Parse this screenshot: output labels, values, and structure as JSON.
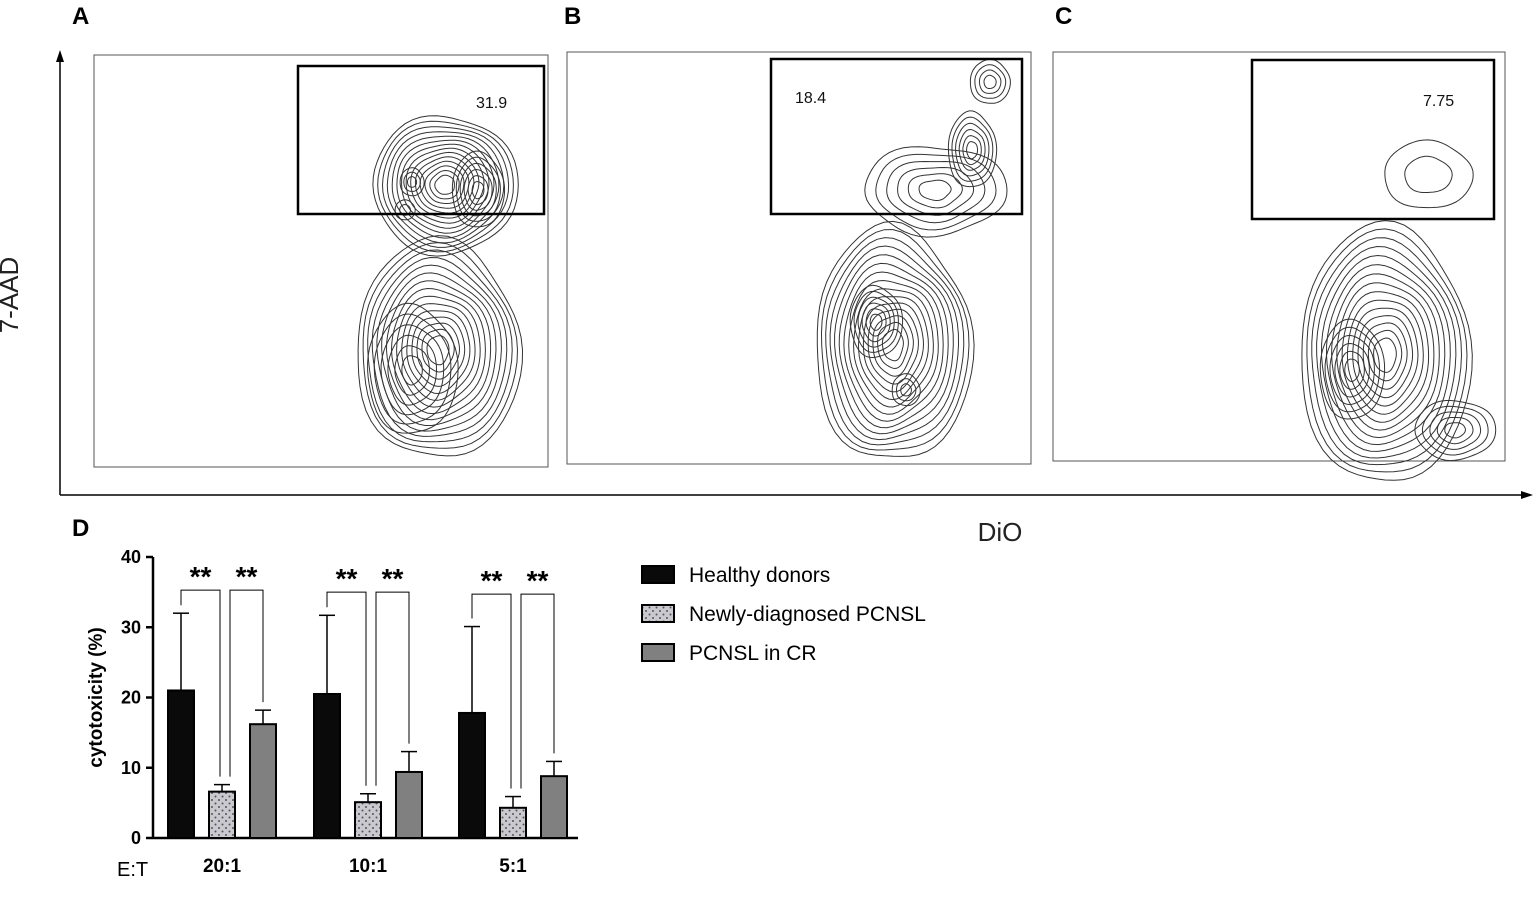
{
  "panels": {
    "A": {
      "letter": "A",
      "gate_value": "31.9"
    },
    "B": {
      "letter": "B",
      "gate_value": "18.4"
    },
    "C": {
      "letter": "C",
      "gate_value": "7.75"
    },
    "D": {
      "letter": "D"
    }
  },
  "flow_axes": {
    "ylabel": "7-AAD",
    "xlabel": "DiO"
  },
  "chart_data": [
    {
      "type": "contour",
      "panel": "A",
      "xlabel": "DiO",
      "ylabel": "7-AAD",
      "gate_percent": 31.9
    },
    {
      "type": "contour",
      "panel": "B",
      "xlabel": "DiO",
      "ylabel": "7-AAD",
      "gate_percent": 18.4
    },
    {
      "type": "contour",
      "panel": "C",
      "xlabel": "DiO",
      "ylabel": "7-AAD",
      "gate_percent": 7.75
    },
    {
      "type": "bar",
      "panel": "D",
      "ylabel": "cytotoxicity (%)",
      "xlabel": "E:T",
      "ylim": [
        0,
        40
      ],
      "yticks": [
        0,
        10,
        20,
        30,
        40
      ],
      "categories": [
        "20:1",
        "10:1",
        "5:1"
      ],
      "series": [
        {
          "name": "Healthy donors",
          "values": [
            21.0,
            20.5,
            17.8
          ],
          "errors": [
            11.0,
            11.2,
            12.3
          ],
          "color": "#0a0a0a",
          "pattern": "solid"
        },
        {
          "name": "Newly-diagnosed PCNSL",
          "values": [
            6.6,
            5.1,
            4.3
          ],
          "errors": [
            1.0,
            1.2,
            1.6
          ],
          "color": "#c9c9cf",
          "pattern": "dots"
        },
        {
          "name": "PCNSL in CR",
          "values": [
            16.2,
            9.4,
            8.8
          ],
          "errors": [
            2.0,
            2.9,
            2.1
          ],
          "color": "#808080",
          "pattern": "solid"
        }
      ],
      "significance": [
        {
          "category": "20:1",
          "pair": [
            0,
            1
          ],
          "label": "**"
        },
        {
          "category": "20:1",
          "pair": [
            1,
            2
          ],
          "label": "**"
        },
        {
          "category": "10:1",
          "pair": [
            0,
            1
          ],
          "label": "**"
        },
        {
          "category": "10:1",
          "pair": [
            1,
            2
          ],
          "label": "**"
        },
        {
          "category": "5:1",
          "pair": [
            0,
            1
          ],
          "label": "**"
        },
        {
          "category": "5:1",
          "pair": [
            1,
            2
          ],
          "label": "**"
        }
      ],
      "legend": "right"
    }
  ]
}
